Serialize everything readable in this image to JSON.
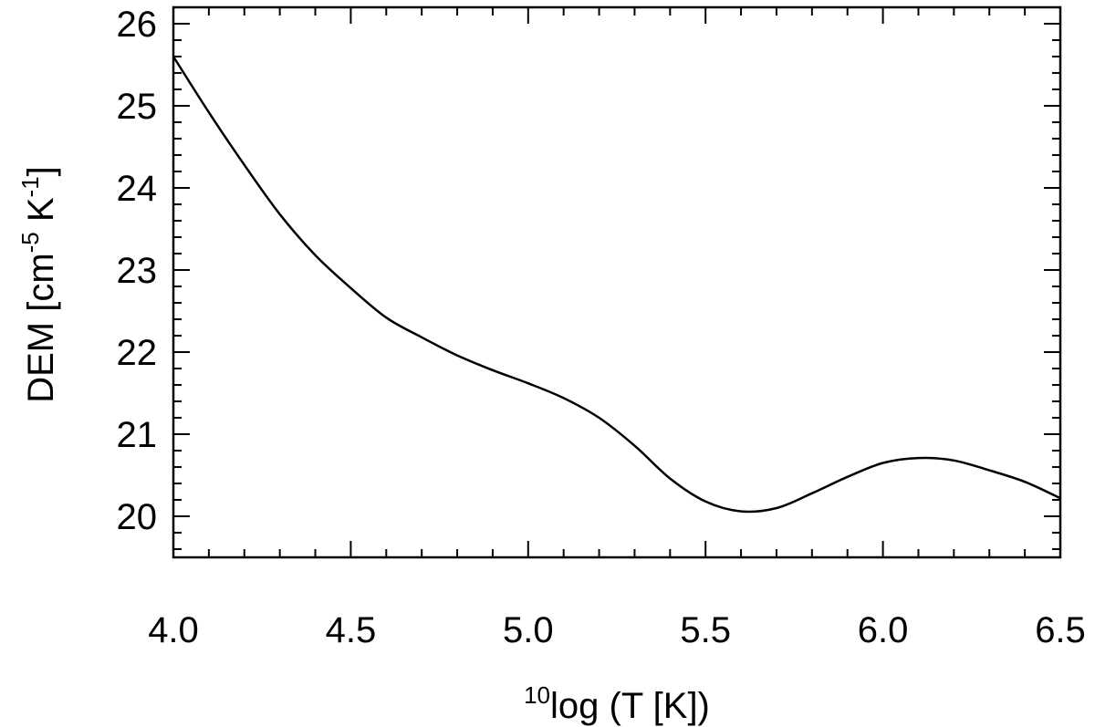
{
  "chart_data": {
    "type": "line",
    "title": "",
    "xlabel": {
      "sup": "10",
      "main": "log (T [K])"
    },
    "ylabel": {
      "part1": "DEM [cm",
      "sup1": "-5",
      "part2": " K",
      "sup2": "-1",
      "part3": "]"
    },
    "xlim": [
      4.0,
      6.5
    ],
    "ylim": [
      19.5,
      26.2
    ],
    "xticks": [
      4.0,
      4.5,
      5.0,
      5.5,
      6.0,
      6.5
    ],
    "xtick_labels": [
      "4.0",
      "4.5",
      "5.0",
      "5.5",
      "6.0",
      "6.5"
    ],
    "yticks": [
      20,
      21,
      22,
      23,
      24,
      25,
      26
    ],
    "ytick_labels": [
      "20",
      "21",
      "22",
      "23",
      "24",
      "25",
      "26"
    ],
    "x_minor_step": 0.1,
    "y_minor_step": 0.2,
    "grid": false,
    "series": [
      {
        "x": [
          4.0,
          4.1,
          4.2,
          4.3,
          4.4,
          4.5,
          4.6,
          4.7,
          4.8,
          4.9,
          5.0,
          5.1,
          5.2,
          5.3,
          5.4,
          5.5,
          5.6,
          5.7,
          5.8,
          5.9,
          6.0,
          6.1,
          6.2,
          6.3,
          6.4,
          6.5
        ],
        "y": [
          25.6,
          24.92,
          24.28,
          23.68,
          23.18,
          22.78,
          22.42,
          22.18,
          21.96,
          21.78,
          21.62,
          21.44,
          21.2,
          20.86,
          20.46,
          20.18,
          20.06,
          20.1,
          20.28,
          20.48,
          20.65,
          20.71,
          20.68,
          20.56,
          20.42,
          20.22
        ]
      }
    ]
  }
}
